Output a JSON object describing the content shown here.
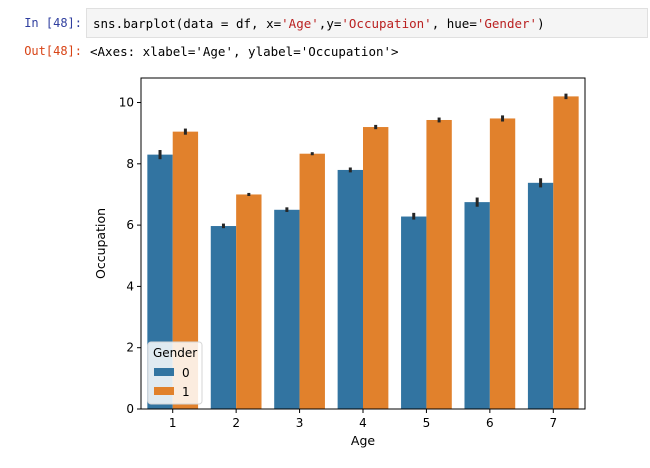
{
  "cell": {
    "in_prompt": "In [48]:",
    "out_prompt": "Out[48]:",
    "code": {
      "p1": "sns.barplot(data = df, x=",
      "s1": "'Age'",
      "p2": ",y=",
      "s2": "'Occupation'",
      "p3": ", hue=",
      "s3": "'Gender'",
      "p4": ")"
    },
    "output_text": "<Axes: xlabel='Age', ylabel='Occupation'>"
  },
  "colors": {
    "series_0": "#3274a1",
    "series_1": "#e1812c",
    "error_bar": "#262626"
  },
  "chart_data": {
    "type": "bar",
    "title": "",
    "xlabel": "Age",
    "ylabel": "Occupation",
    "categories": [
      "1",
      "2",
      "3",
      "4",
      "5",
      "6",
      "7"
    ],
    "yticks": [
      "0",
      "2",
      "4",
      "6",
      "8",
      "10"
    ],
    "ylim": [
      0,
      10.8
    ],
    "legend": {
      "title": "Gender",
      "placement": "lower-left"
    },
    "series": [
      {
        "name": "0",
        "values": [
          8.3,
          5.97,
          6.5,
          7.8,
          6.28,
          6.75,
          7.38
        ],
        "err": [
          [
            8.15,
            8.45
          ],
          [
            5.9,
            6.05
          ],
          [
            6.43,
            6.58
          ],
          [
            7.72,
            7.88
          ],
          [
            6.18,
            6.4
          ],
          [
            6.6,
            6.9
          ],
          [
            7.23,
            7.53
          ]
        ]
      },
      {
        "name": "1",
        "values": [
          9.05,
          7.0,
          8.33,
          9.2,
          9.43,
          9.48,
          10.2
        ],
        "err": [
          [
            8.95,
            9.15
          ],
          [
            6.95,
            7.05
          ],
          [
            8.28,
            8.38
          ],
          [
            9.13,
            9.27
          ],
          [
            9.35,
            9.51
          ],
          [
            9.38,
            9.58
          ],
          [
            10.11,
            10.29
          ]
        ]
      }
    ]
  }
}
